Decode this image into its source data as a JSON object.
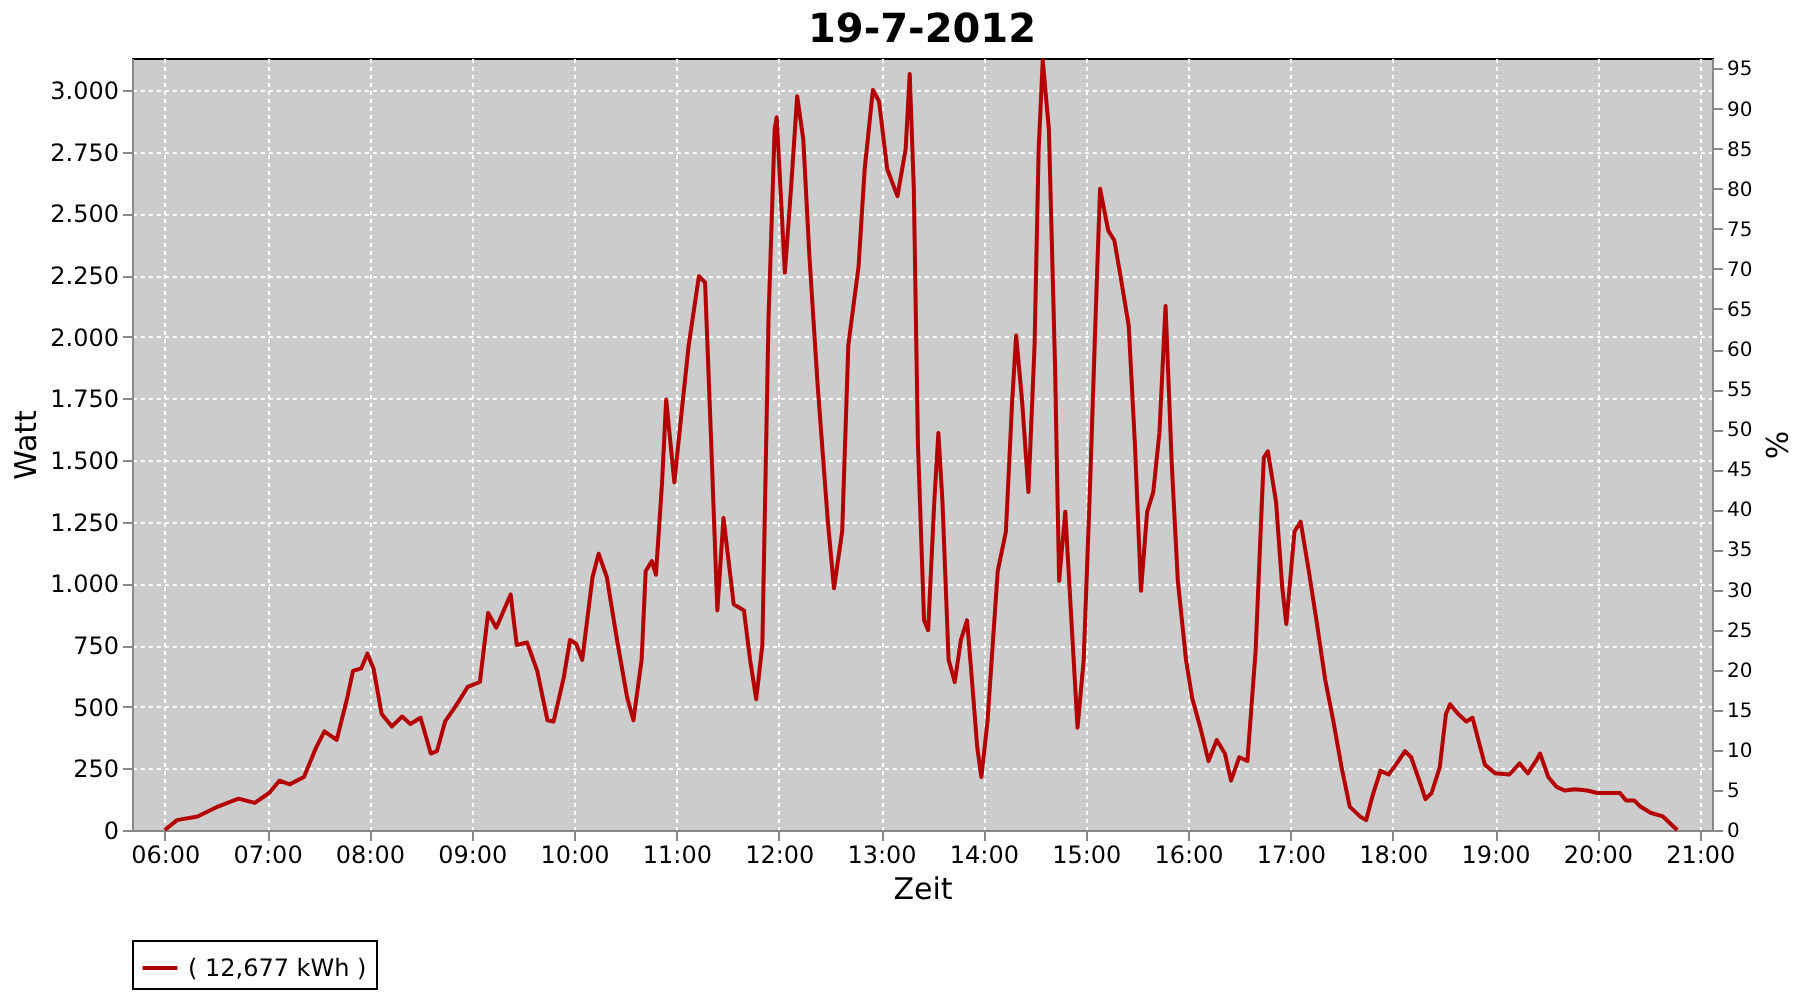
{
  "chart_data": {
    "type": "line",
    "title": "19-7-2012",
    "xlabel": "Zeit",
    "ylabel": "Watt",
    "y2label": "%",
    "xlim": [
      5.68,
      21.12
    ],
    "xticks": [
      {
        "value": 6,
        "label": "06:00"
      },
      {
        "value": 7,
        "label": "07:00"
      },
      {
        "value": 8,
        "label": "08:00"
      },
      {
        "value": 9,
        "label": "09:00"
      },
      {
        "value": 10,
        "label": "10:00"
      },
      {
        "value": 11,
        "label": "11:00"
      },
      {
        "value": 12,
        "label": "12:00"
      },
      {
        "value": 13,
        "label": "13:00"
      },
      {
        "value": 14,
        "label": "14:00"
      },
      {
        "value": 15,
        "label": "15:00"
      },
      {
        "value": 16,
        "label": "16:00"
      },
      {
        "value": 17,
        "label": "17:00"
      },
      {
        "value": 18,
        "label": "18:00"
      },
      {
        "value": 19,
        "label": "19:00"
      },
      {
        "value": 20,
        "label": "20:00"
      },
      {
        "value": 21,
        "label": "21:00"
      }
    ],
    "ylim": [
      0,
      3130
    ],
    "yticks": [
      0,
      250,
      500,
      750,
      {
        "value": 1000,
        "label": "1.000"
      },
      {
        "value": 1250,
        "label": "1.250"
      },
      {
        "value": 1500,
        "label": "1.500"
      },
      {
        "value": 1750,
        "label": "1.750"
      },
      {
        "value": 2000,
        "label": "2.000"
      },
      {
        "value": 2250,
        "label": "2.250"
      },
      {
        "value": 2500,
        "label": "2.500"
      },
      {
        "value": 2750,
        "label": "2.750"
      },
      {
        "value": 3000,
        "label": "3.000"
      }
    ],
    "y2lim": [
      0,
      96.3
    ],
    "y2ticks": [
      0,
      5,
      10,
      15,
      20,
      25,
      30,
      35,
      40,
      45,
      50,
      55,
      60,
      65,
      70,
      75,
      80,
      85,
      90,
      95
    ],
    "grid": true,
    "legend": "bottom",
    "marker": "none",
    "line_style": "solid",
    "series": [
      {
        "name": "( 12,677 kWh )",
        "color": "#b40000",
        "x": [
          6.0,
          6.12,
          6.32,
          6.52,
          6.72,
          6.88,
          7.02,
          7.12,
          7.22,
          7.36,
          7.48,
          7.56,
          7.68,
          7.78,
          7.84,
          7.92,
          7.98,
          8.04,
          8.12,
          8.22,
          8.32,
          8.4,
          8.5,
          8.6,
          8.66,
          8.74,
          8.84,
          8.96,
          9.08,
          9.16,
          9.24,
          9.38,
          9.44,
          9.54,
          9.64,
          9.74,
          9.8,
          9.9,
          9.96,
          10.02,
          10.08,
          10.18,
          10.24,
          10.32,
          10.42,
          10.52,
          10.58,
          10.66,
          10.7,
          10.76,
          10.8,
          10.86,
          10.9,
          10.98,
          11.06,
          11.12,
          11.22,
          11.28,
          11.34,
          11.4,
          11.46,
          11.56,
          11.66,
          11.72,
          11.78,
          11.84,
          11.9,
          11.96,
          11.98,
          12.06,
          12.12,
          12.18,
          12.24,
          12.3,
          12.38,
          12.48,
          12.54,
          12.62,
          12.68,
          12.78,
          12.84,
          12.92,
          12.98,
          13.06,
          13.16,
          13.24,
          13.28,
          13.32,
          13.36,
          13.42,
          13.46,
          13.52,
          13.56,
          13.6,
          13.66,
          13.72,
          13.78,
          13.84,
          13.88,
          13.94,
          13.98,
          14.04,
          14.14,
          14.22,
          14.28,
          14.32,
          14.38,
          14.44,
          14.5,
          14.54,
          14.58,
          14.64,
          14.7,
          14.74,
          14.8,
          14.86,
          14.92,
          14.98,
          15.04,
          15.1,
          15.14,
          15.22,
          15.28,
          15.34,
          15.42,
          15.48,
          15.54,
          15.6,
          15.66,
          15.72,
          15.78,
          15.84,
          15.9,
          15.98,
          16.04,
          16.12,
          16.2,
          16.28,
          16.36,
          16.42,
          16.5,
          16.58,
          16.66,
          16.74,
          16.78,
          16.86,
          16.92,
          16.96,
          17.04,
          17.1,
          17.18,
          17.26,
          17.34,
          17.42,
          17.5,
          17.58,
          17.68,
          17.74,
          17.8,
          17.88,
          17.96,
          18.04,
          18.12,
          18.18,
          18.26,
          18.32,
          18.38,
          18.46,
          18.52,
          18.56,
          18.64,
          18.72,
          18.78,
          18.84,
          18.9,
          19.0,
          19.14,
          19.24,
          19.32,
          19.4,
          19.44,
          19.52,
          19.6,
          19.68,
          19.78,
          19.9,
          20.0,
          20.22,
          20.28,
          20.36,
          20.42,
          20.52,
          20.64,
          20.78
        ],
        "values": [
          0,
          40,
          55,
          95,
          127,
          110,
          150,
          200,
          185,
          215,
          335,
          400,
          365,
          530,
          645,
          655,
          715,
          655,
          470,
          420,
          460,
          430,
          455,
          310,
          320,
          440,
          500,
          580,
          600,
          880,
          820,
          955,
          750,
          760,
          645,
          445,
          440,
          620,
          770,
          755,
          690,
          1025,
          1120,
          1025,
          770,
          535,
          445,
          690,
          1050,
          1090,
          1035,
          1410,
          1745,
          1410,
          1730,
          1965,
          2245,
          2220,
          1570,
          890,
          1265,
          915,
          890,
          690,
          530,
          750,
          2070,
          2840,
          2890,
          2260,
          2600,
          2975,
          2800,
          2325,
          1805,
          1250,
          980,
          1210,
          1965,
          2285,
          2680,
          3000,
          2955,
          2680,
          2570,
          2760,
          3065,
          2600,
          1570,
          850,
          810,
          1330,
          1610,
          1330,
          690,
          600,
          770,
          850,
          650,
          335,
          215,
          440,
          1050,
          1210,
          1730,
          2005,
          1730,
          1370,
          1965,
          2760,
          3120,
          2840,
          1885,
          1010,
          1290,
          850,
          415,
          690,
          1370,
          2125,
          2600,
          2430,
          2390,
          2245,
          2045,
          1570,
          970,
          1290,
          1370,
          1610,
          2125,
          1490,
          1010,
          690,
          535,
          415,
          280,
          365,
          310,
          200,
          295,
          280,
          725,
          1510,
          1535,
          1330,
          985,
          835,
          1210,
          1250,
          1050,
          835,
          610,
          440,
          255,
          95,
          55,
          40,
          135,
          240,
          225,
          270,
          320,
          295,
          200,
          125,
          150,
          255,
          470,
          510,
          470,
          440,
          455,
          360,
          265,
          230,
          225,
          270,
          230,
          280,
          310,
          215,
          175,
          160,
          165,
          160,
          150,
          150,
          120,
          120,
          95,
          70,
          55,
          0
        ]
      }
    ]
  }
}
